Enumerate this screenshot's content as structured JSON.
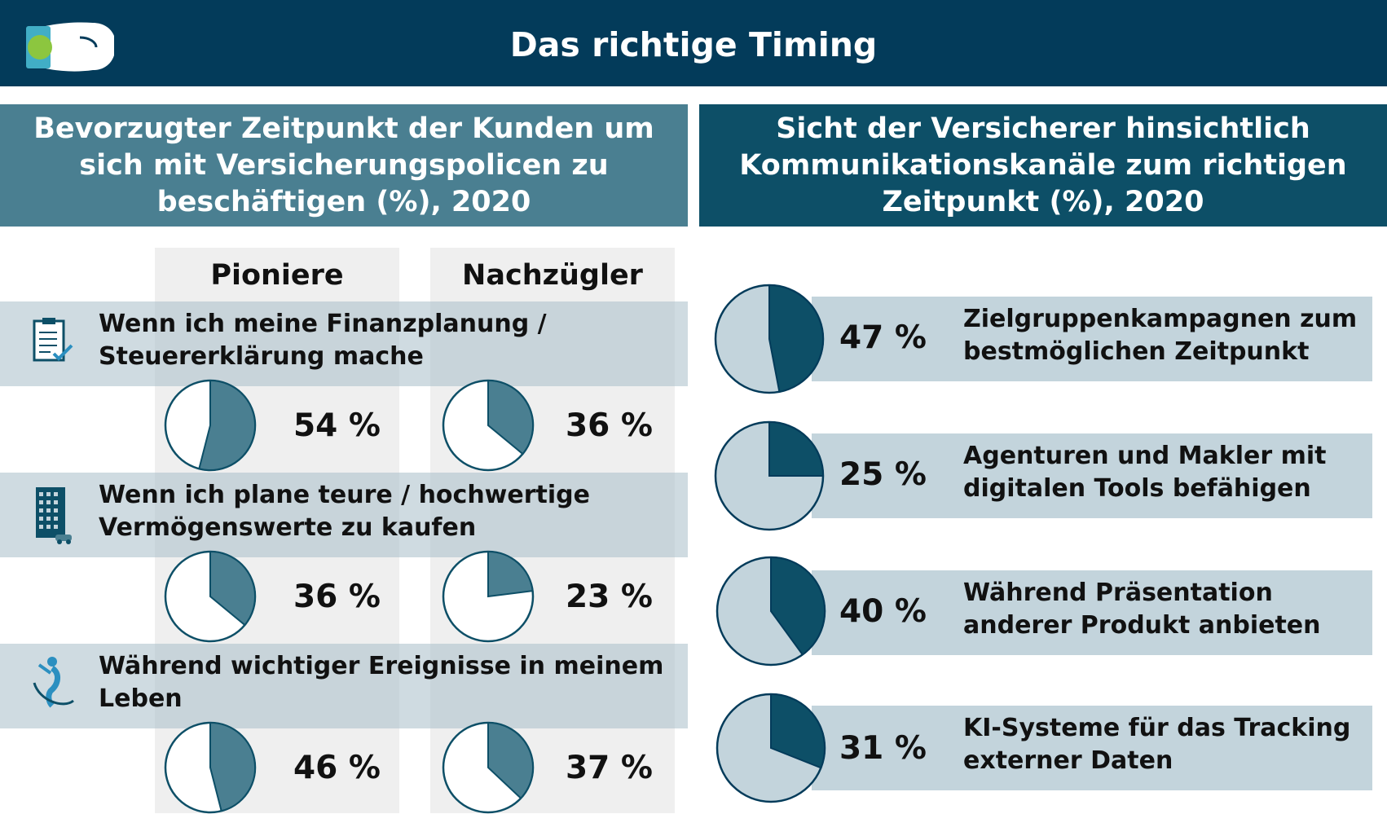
{
  "header": {
    "title": "Das richtige Timing",
    "icon": "watch-icon"
  },
  "colors": {
    "header_bg": "#033b5a",
    "left_panel": "#4a7f91",
    "right_panel": "#0d4f67",
    "pie_left_fill": "#4a7f91",
    "pie_right_fill": "#0d4f67",
    "pie_right_bg": "#c3d4dc"
  },
  "chart_data": [
    {
      "type": "pie",
      "title": "Bevorzugter Zeitpunkt der Kunden um sich mit Versicherungspolicen zu beschäftigen (%), 2020",
      "columns": [
        "Pioniere",
        "Nachzügler"
      ],
      "rows": [
        {
          "label": "Wenn ich meine Finanzplanung / Steuererklärung mache",
          "icon": "clipboard-checklist-icon",
          "values": [
            54,
            36
          ],
          "labels": [
            "54 %",
            "36 %"
          ]
        },
        {
          "label": "Wenn ich plane teure / hochwertige Vermögenswerte zu kaufen",
          "icon": "building-icon",
          "values": [
            36,
            23
          ],
          "labels": [
            "36 %",
            "23 %"
          ]
        },
        {
          "label": "Während wichtiger Ereignisse in meinem Leben",
          "icon": "person-celebrating-icon",
          "values": [
            46,
            37
          ],
          "labels": [
            "46 %",
            "37 %"
          ]
        }
      ]
    },
    {
      "type": "pie",
      "title": "Sicht der Versicherer hinsichtlich Kommunikationskanäle zum richtigen Zeitpunkt (%), 2020",
      "items": [
        {
          "label": "Zielgruppenkampagnen zum bestmöglichen Zeitpunkt",
          "value": 47,
          "value_label": "47 %"
        },
        {
          "label": "Agenturen und Makler mit digitalen Tools befähigen",
          "value": 25,
          "value_label": "25 %"
        },
        {
          "label": "Während Präsentation anderer Produkt anbieten",
          "value": 40,
          "value_label": "40 %"
        },
        {
          "label": "KI-Systeme für das Tracking externer Daten",
          "value": 31,
          "value_label": "31 %"
        }
      ]
    }
  ]
}
